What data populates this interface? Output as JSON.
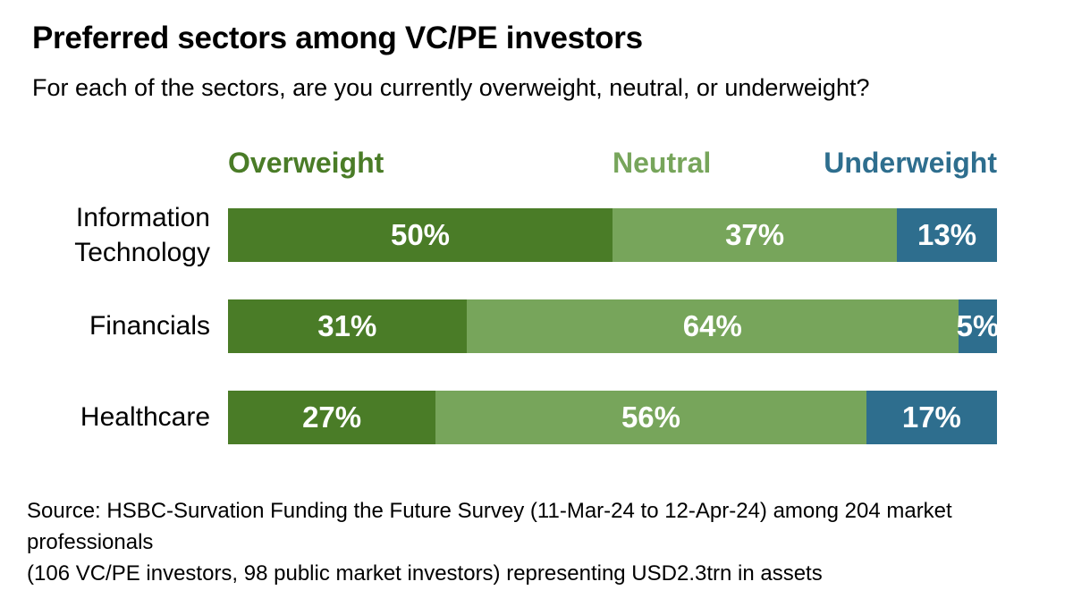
{
  "header": {
    "title": "Preferred sectors among VC/PE investors",
    "subtitle": "For each of the sectors, are you currently overweight, neutral, or underweight?"
  },
  "chart_data": {
    "type": "bar",
    "orientation": "horizontal",
    "stacked": true,
    "value_unit": "%",
    "xlim": [
      0,
      100
    ],
    "grid": false,
    "legend_position": "top",
    "categories": [
      "Information Technology",
      "Financials",
      "Healthcare"
    ],
    "series": [
      {
        "name": "Overweight",
        "color": "#4a7c27",
        "values": [
          50,
          31,
          27
        ]
      },
      {
        "name": "Neutral",
        "color": "#77a55b",
        "values": [
          37,
          64,
          56
        ]
      },
      {
        "name": "Underweight",
        "color": "#2e6e8e",
        "values": [
          13,
          5,
          17
        ]
      }
    ],
    "title": "Preferred sectors among VC/PE investors",
    "xlabel": "",
    "ylabel": ""
  },
  "source": {
    "line1": "Source: HSBC-Survation Funding the Future Survey (11-Mar-24 to 12-Apr-24) among 204 market professionals",
    "line2": "(106 VC/PE investors, 98 public market investors) representing USD2.3trn in assets"
  },
  "colors": {
    "overweight_green": "#4a7c27",
    "neutral_green": "#77a55b",
    "underweight_blue": "#2e6e8e",
    "text": "#000000",
    "value_label_text": "#ffffff",
    "background": "#ffffff"
  }
}
